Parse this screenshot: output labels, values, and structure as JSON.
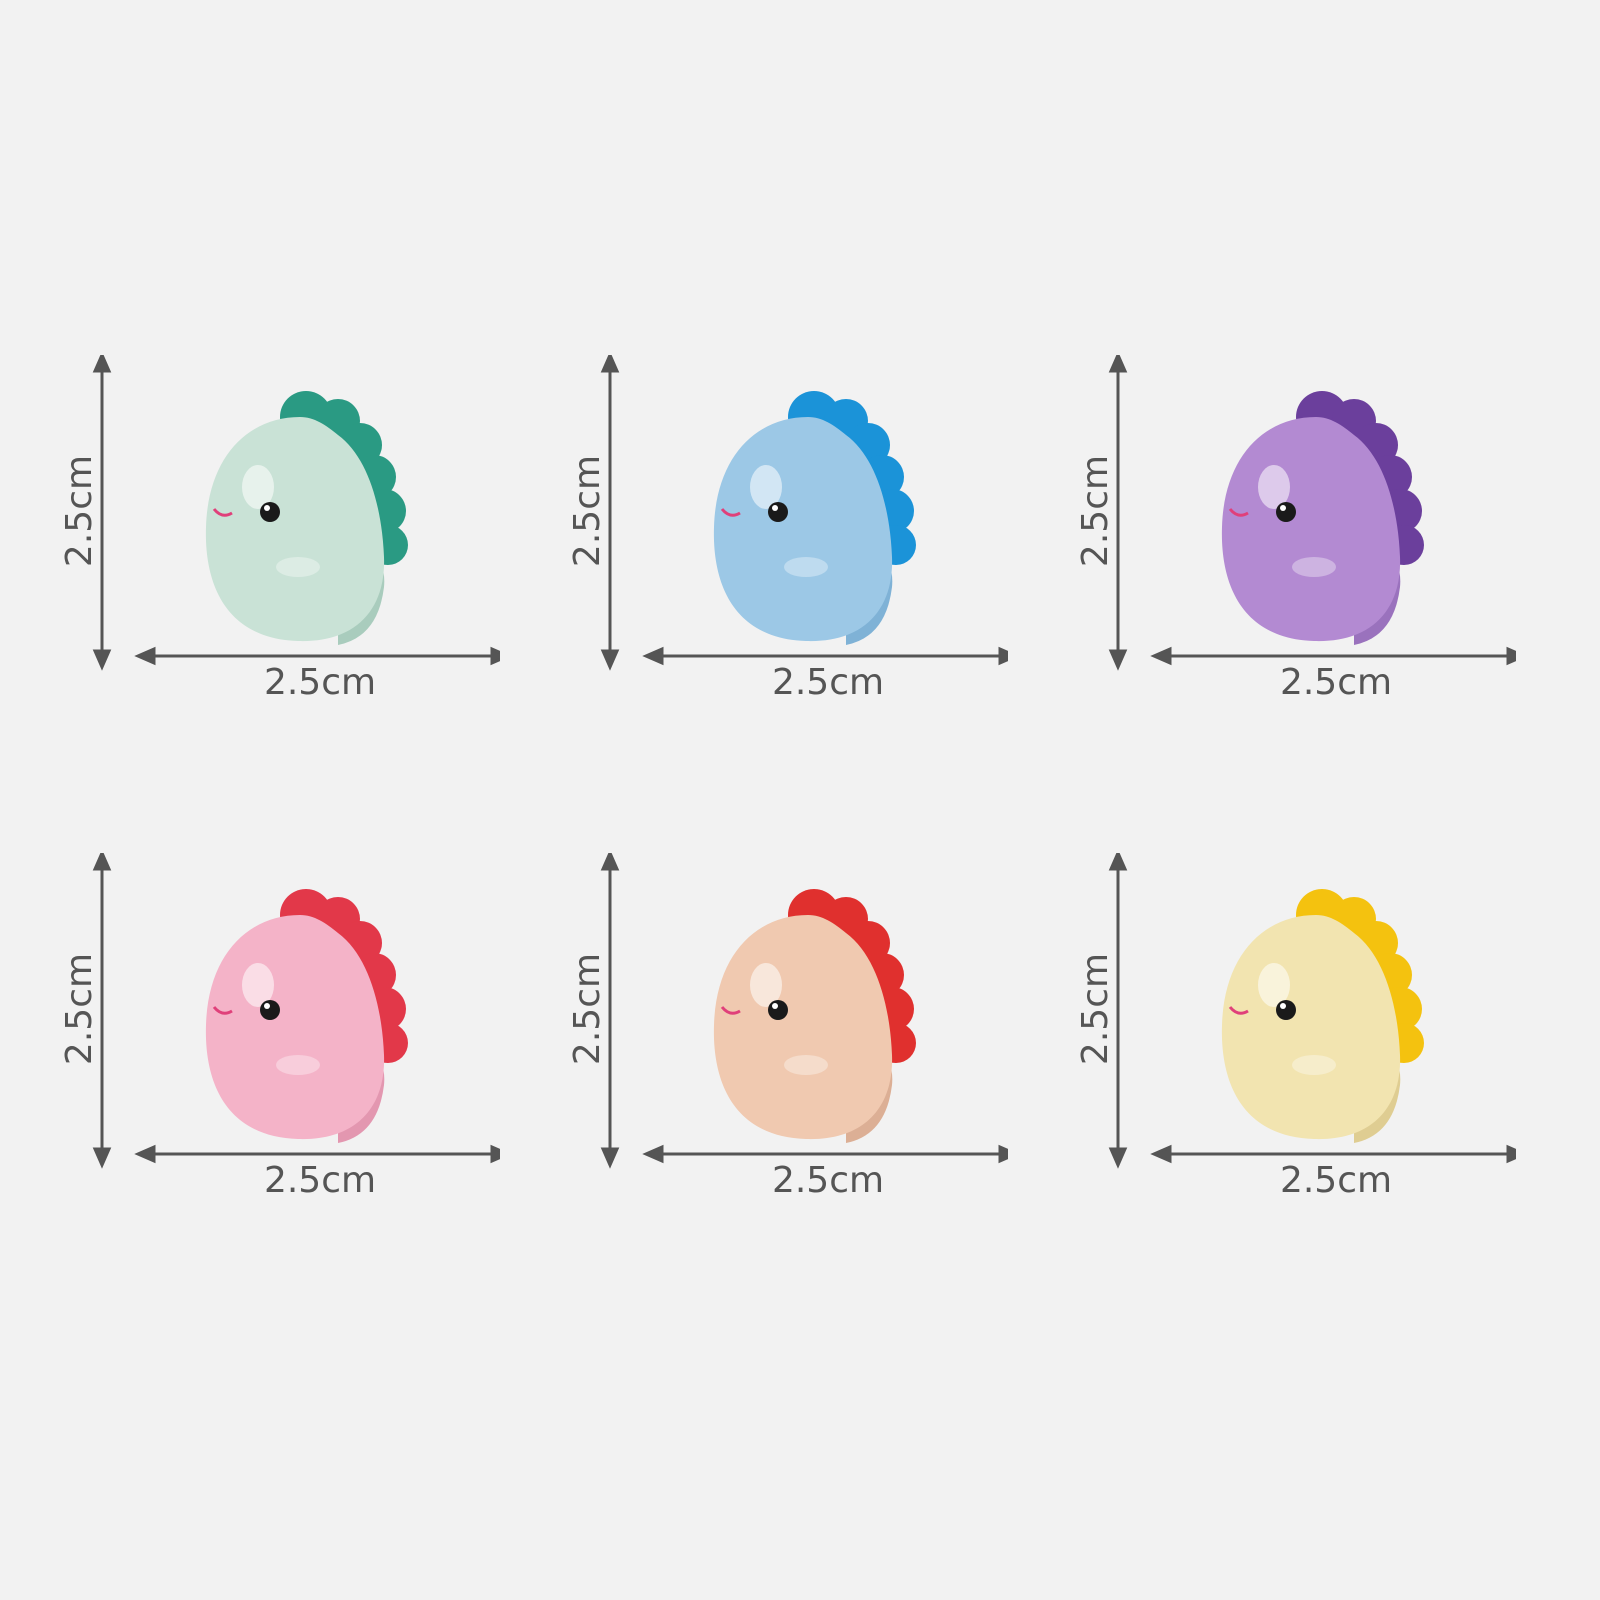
{
  "figures": [
    {
      "height_label": "2.5cm",
      "width_label": "2.5cm",
      "body_color": "#c9e2d6",
      "crest_color": "#2a9a83",
      "shade_color": "#a9ccbd"
    },
    {
      "height_label": "2.5cm",
      "width_label": "2.5cm",
      "body_color": "#9cc8e6",
      "crest_color": "#1b93d8",
      "shade_color": "#7fb2d6"
    },
    {
      "height_label": "2.5cm",
      "width_label": "2.5cm",
      "body_color": "#b38ad2",
      "crest_color": "#6b3f9c",
      "shade_color": "#9a72bd"
    },
    {
      "height_label": "2.5cm",
      "width_label": "2.5cm",
      "body_color": "#f4b3c8",
      "crest_color": "#e23849",
      "shade_color": "#e397b0"
    },
    {
      "height_label": "2.5cm",
      "width_label": "2.5cm",
      "body_color": "#f0c9b0",
      "crest_color": "#e0302e",
      "shade_color": "#dcaf95"
    },
    {
      "height_label": "2.5cm",
      "width_label": "2.5cm",
      "body_color": "#f2e4b0",
      "crest_color": "#f4c20f",
      "shade_color": "#dfcd92"
    }
  ]
}
